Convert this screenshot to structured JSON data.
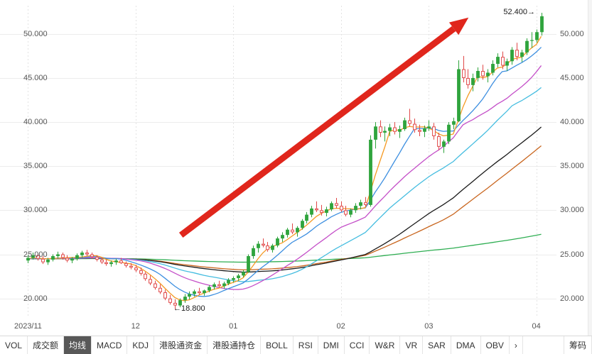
{
  "chart_data": {
    "type": "candlestick",
    "title": "",
    "y_axis": {
      "min": 17.8,
      "max": 53.2,
      "ticks": [
        {
          "value": 20,
          "label": "20.000"
        },
        {
          "value": 25,
          "label": "25.000"
        },
        {
          "value": 30,
          "label": "30.000"
        },
        {
          "value": 35,
          "label": "35.000"
        },
        {
          "value": 40,
          "label": "40.000"
        },
        {
          "value": 45,
          "label": "45.000"
        },
        {
          "value": 50,
          "label": "50.000"
        }
      ]
    },
    "x_axis": {
      "month_ticks": [
        {
          "label": "2023/11",
          "index": 0
        },
        {
          "label": "12",
          "index": 22
        },
        {
          "label": "01",
          "index": 42
        },
        {
          "label": "02",
          "index": 64
        },
        {
          "label": "03",
          "index": 82
        },
        {
          "label": "04",
          "index": 104
        }
      ]
    },
    "colors": {
      "up": "#2fa43d",
      "down": "#e04848",
      "grid": "#ececec",
      "month_grid": "#e3e3e3",
      "axis_text": "#555555",
      "arrow": "#e0261c"
    },
    "high_annotation": {
      "text": "52.400→",
      "value": 52.4
    },
    "low_annotation": {
      "text": "←18.800",
      "value": 18.8
    },
    "prehistory": {
      "days": 150,
      "price": 24.5
    },
    "moving_averages": [
      {
        "window": 5,
        "color": "#f59a23"
      },
      {
        "window": 10,
        "color": "#3d8fe0"
      },
      {
        "window": 20,
        "color": "#c44fc8"
      },
      {
        "window": 30,
        "color": "#45bde0"
      },
      {
        "window": 50,
        "color": "#1a1a1a"
      },
      {
        "window": 60,
        "color": "#c9661f"
      },
      {
        "window": 250,
        "color": "#2eae52"
      }
    ],
    "trend_arrow": {
      "color": "#e0261c",
      "from_frac": [
        0.3,
        0.735
      ],
      "to_frac": [
        0.855,
        0.038
      ]
    },
    "candles": [
      [
        24.3,
        24.9,
        24.0,
        24.6
      ],
      [
        24.6,
        25.2,
        24.4,
        24.9
      ],
      [
        24.9,
        25.1,
        24.3,
        24.5
      ],
      [
        24.5,
        24.8,
        23.9,
        24.1
      ],
      [
        24.1,
        24.6,
        23.8,
        24.4
      ],
      [
        24.4,
        25.0,
        24.2,
        24.8
      ],
      [
        24.8,
        25.3,
        24.5,
        25.0
      ],
      [
        25.0,
        25.2,
        24.4,
        24.6
      ],
      [
        24.6,
        24.9,
        24.1,
        24.3
      ],
      [
        24.3,
        24.7,
        24.0,
        24.5
      ],
      [
        24.5,
        25.1,
        24.3,
        24.9
      ],
      [
        24.9,
        25.4,
        24.6,
        25.2
      ],
      [
        25.2,
        25.5,
        24.8,
        25.0
      ],
      [
        25.0,
        25.2,
        24.5,
        24.7
      ],
      [
        24.7,
        24.9,
        24.2,
        24.4
      ],
      [
        24.4,
        24.6,
        23.9,
        24.1
      ],
      [
        24.1,
        24.4,
        23.7,
        23.9
      ],
      [
        23.9,
        24.3,
        23.6,
        24.1
      ],
      [
        24.1,
        24.5,
        23.8,
        24.3
      ],
      [
        24.3,
        24.6,
        23.9,
        24.0
      ],
      [
        24.0,
        24.2,
        23.5,
        23.7
      ],
      [
        23.7,
        24.0,
        23.3,
        23.5
      ],
      [
        23.5,
        23.8,
        23.0,
        23.2
      ],
      [
        23.2,
        23.5,
        22.6,
        22.8
      ],
      [
        22.8,
        23.0,
        22.0,
        22.2
      ],
      [
        22.2,
        22.6,
        21.5,
        21.7
      ],
      [
        21.7,
        22.0,
        21.0,
        21.2
      ],
      [
        21.2,
        21.6,
        20.5,
        20.7
      ],
      [
        20.7,
        21.0,
        19.8,
        20.0
      ],
      [
        20.0,
        20.4,
        19.3,
        19.5
      ],
      [
        19.5,
        19.9,
        18.8,
        19.2
      ],
      [
        19.2,
        20.0,
        19.0,
        19.8
      ],
      [
        19.8,
        20.5,
        19.5,
        20.2
      ],
      [
        20.2,
        20.8,
        19.9,
        20.5
      ],
      [
        20.5,
        21.0,
        20.2,
        20.8
      ],
      [
        20.8,
        21.2,
        20.4,
        20.6
      ],
      [
        20.6,
        21.0,
        20.3,
        20.9
      ],
      [
        20.9,
        21.5,
        20.7,
        21.3
      ],
      [
        21.3,
        21.8,
        21.0,
        21.6
      ],
      [
        21.6,
        22.0,
        21.2,
        21.4
      ],
      [
        21.4,
        21.9,
        21.1,
        21.7
      ],
      [
        21.7,
        22.3,
        21.5,
        22.1
      ],
      [
        22.1,
        22.5,
        21.8,
        22.3
      ],
      [
        22.3,
        22.8,
        22.0,
        22.6
      ],
      [
        22.6,
        23.2,
        22.4,
        23.0
      ],
      [
        23.0,
        25.0,
        22.9,
        24.8
      ],
      [
        24.8,
        26.0,
        24.5,
        25.7
      ],
      [
        25.7,
        26.5,
        25.2,
        26.2
      ],
      [
        26.2,
        26.8,
        25.8,
        26.0
      ],
      [
        26.0,
        26.4,
        25.3,
        25.5
      ],
      [
        25.5,
        26.2,
        25.2,
        26.0
      ],
      [
        26.0,
        27.0,
        25.8,
        26.8
      ],
      [
        26.8,
        27.5,
        26.4,
        27.2
      ],
      [
        27.2,
        28.0,
        26.9,
        27.8
      ],
      [
        27.8,
        28.5,
        27.3,
        27.5
      ],
      [
        27.5,
        28.2,
        27.0,
        28.0
      ],
      [
        28.0,
        29.0,
        27.8,
        28.8
      ],
      [
        28.8,
        29.8,
        28.5,
        29.5
      ],
      [
        29.5,
        30.5,
        29.2,
        30.2
      ],
      [
        30.2,
        31.0,
        29.8,
        30.0
      ],
      [
        30.0,
        30.6,
        29.4,
        29.7
      ],
      [
        29.7,
        30.4,
        29.3,
        30.1
      ],
      [
        30.1,
        31.0,
        29.9,
        30.8
      ],
      [
        30.8,
        31.4,
        30.2,
        30.5
      ],
      [
        30.5,
        31.0,
        29.8,
        30.0
      ],
      [
        30.0,
        30.5,
        29.3,
        29.5
      ],
      [
        29.5,
        30.2,
        29.2,
        30.0
      ],
      [
        30.0,
        30.8,
        29.7,
        30.5
      ],
      [
        30.5,
        31.2,
        30.1,
        30.9
      ],
      [
        30.9,
        31.5,
        30.4,
        30.6
      ],
      [
        30.6,
        38.5,
        30.4,
        38.0
      ],
      [
        38.0,
        40.0,
        37.0,
        39.5
      ],
      [
        39.5,
        40.2,
        38.3,
        38.8
      ],
      [
        38.8,
        39.5,
        37.8,
        39.0
      ],
      [
        39.0,
        39.8,
        38.4,
        39.4
      ],
      [
        39.4,
        40.0,
        38.6,
        38.9
      ],
      [
        38.9,
        39.6,
        38.2,
        39.2
      ],
      [
        39.2,
        40.5,
        39.0,
        40.2
      ],
      [
        40.2,
        41.5,
        39.5,
        39.8
      ],
      [
        39.8,
        40.4,
        38.8,
        39.1
      ],
      [
        39.1,
        39.7,
        38.4,
        38.9
      ],
      [
        38.9,
        39.6,
        38.3,
        39.3
      ],
      [
        39.3,
        40.2,
        39.0,
        39.5
      ],
      [
        39.5,
        39.9,
        38.0,
        38.4
      ],
      [
        38.4,
        38.8,
        36.8,
        37.2
      ],
      [
        37.2,
        38.0,
        36.5,
        37.8
      ],
      [
        37.8,
        40.0,
        37.5,
        39.7
      ],
      [
        39.7,
        40.5,
        39.2,
        40.1
      ],
      [
        40.1,
        47.0,
        40.0,
        46.0
      ],
      [
        46.0,
        47.5,
        44.5,
        45.0
      ],
      [
        45.0,
        46.0,
        43.8,
        44.2
      ],
      [
        44.2,
        45.5,
        43.5,
        45.0
      ],
      [
        45.0,
        46.2,
        44.6,
        45.8
      ],
      [
        45.8,
        46.5,
        44.8,
        45.2
      ],
      [
        45.2,
        46.0,
        44.5,
        45.6
      ],
      [
        45.6,
        47.0,
        45.3,
        46.6
      ],
      [
        46.6,
        47.8,
        46.2,
        47.4
      ],
      [
        47.4,
        48.0,
        46.0,
        46.4
      ],
      [
        46.4,
        47.2,
        45.8,
        46.9
      ],
      [
        46.9,
        48.5,
        46.5,
        48.2
      ],
      [
        48.2,
        49.0,
        47.0,
        47.4
      ],
      [
        47.4,
        48.2,
        46.8,
        47.9
      ],
      [
        47.9,
        49.5,
        47.6,
        49.2
      ],
      [
        49.2,
        50.2,
        48.4,
        49.3
      ],
      [
        49.3,
        50.5,
        49.0,
        50.2
      ],
      [
        50.2,
        52.4,
        49.8,
        52.0
      ]
    ]
  },
  "toolbar": {
    "items": [
      {
        "id": "vol",
        "label": "VOL"
      },
      {
        "id": "turnover",
        "label": "成交额"
      },
      {
        "id": "ma",
        "label": "均线",
        "active": true
      },
      {
        "id": "macd",
        "label": "MACD"
      },
      {
        "id": "kdj",
        "label": "KDJ"
      },
      {
        "id": "hk-connect-flow",
        "label": "港股通资金"
      },
      {
        "id": "hk-connect-holdings",
        "label": "港股通持仓"
      },
      {
        "id": "boll",
        "label": "BOLL"
      },
      {
        "id": "rsi",
        "label": "RSI"
      },
      {
        "id": "dmi",
        "label": "DMI"
      },
      {
        "id": "cci",
        "label": "CCI"
      },
      {
        "id": "wr",
        "label": "W&R"
      },
      {
        "id": "vr",
        "label": "VR"
      },
      {
        "id": "sar",
        "label": "SAR"
      },
      {
        "id": "dma",
        "label": "DMA"
      },
      {
        "id": "obv",
        "label": "OBV"
      },
      {
        "id": "more",
        "label": "›"
      },
      {
        "id": "chips",
        "label": "筹码",
        "align": "right"
      }
    ]
  }
}
